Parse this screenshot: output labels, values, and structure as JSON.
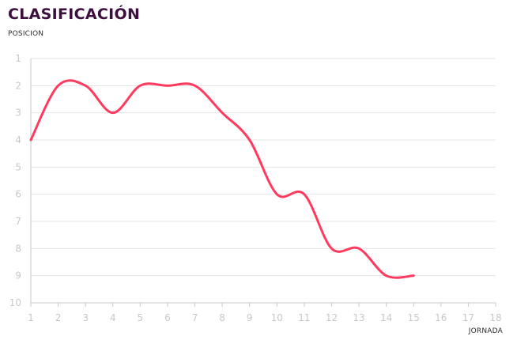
{
  "chart_data": {
    "type": "line",
    "title": "CLASIFICACIÓN",
    "ylabel": "POSICION",
    "xlabel": "JORNADA",
    "x_ticks": [
      "1",
      "2",
      "3",
      "4",
      "5",
      "6",
      "7",
      "8",
      "9",
      "10",
      "11",
      "12",
      "13",
      "14",
      "15",
      "16",
      "17",
      "18"
    ],
    "y_ticks": [
      "1",
      "2",
      "3",
      "4",
      "5",
      "6",
      "7",
      "8",
      "9",
      "10"
    ],
    "xlim": [
      1,
      18
    ],
    "ylim": [
      1,
      10
    ],
    "y_inverted": true,
    "grid": true,
    "series": [
      {
        "color": "#ff3a5e",
        "x": [
          1,
          2,
          3,
          4,
          5,
          6,
          7,
          8,
          9,
          10,
          11,
          12,
          13,
          14,
          15
        ],
        "y": [
          4,
          2,
          2,
          3,
          2,
          2,
          2,
          3,
          4,
          6,
          6,
          8,
          8,
          9,
          9
        ]
      }
    ]
  }
}
